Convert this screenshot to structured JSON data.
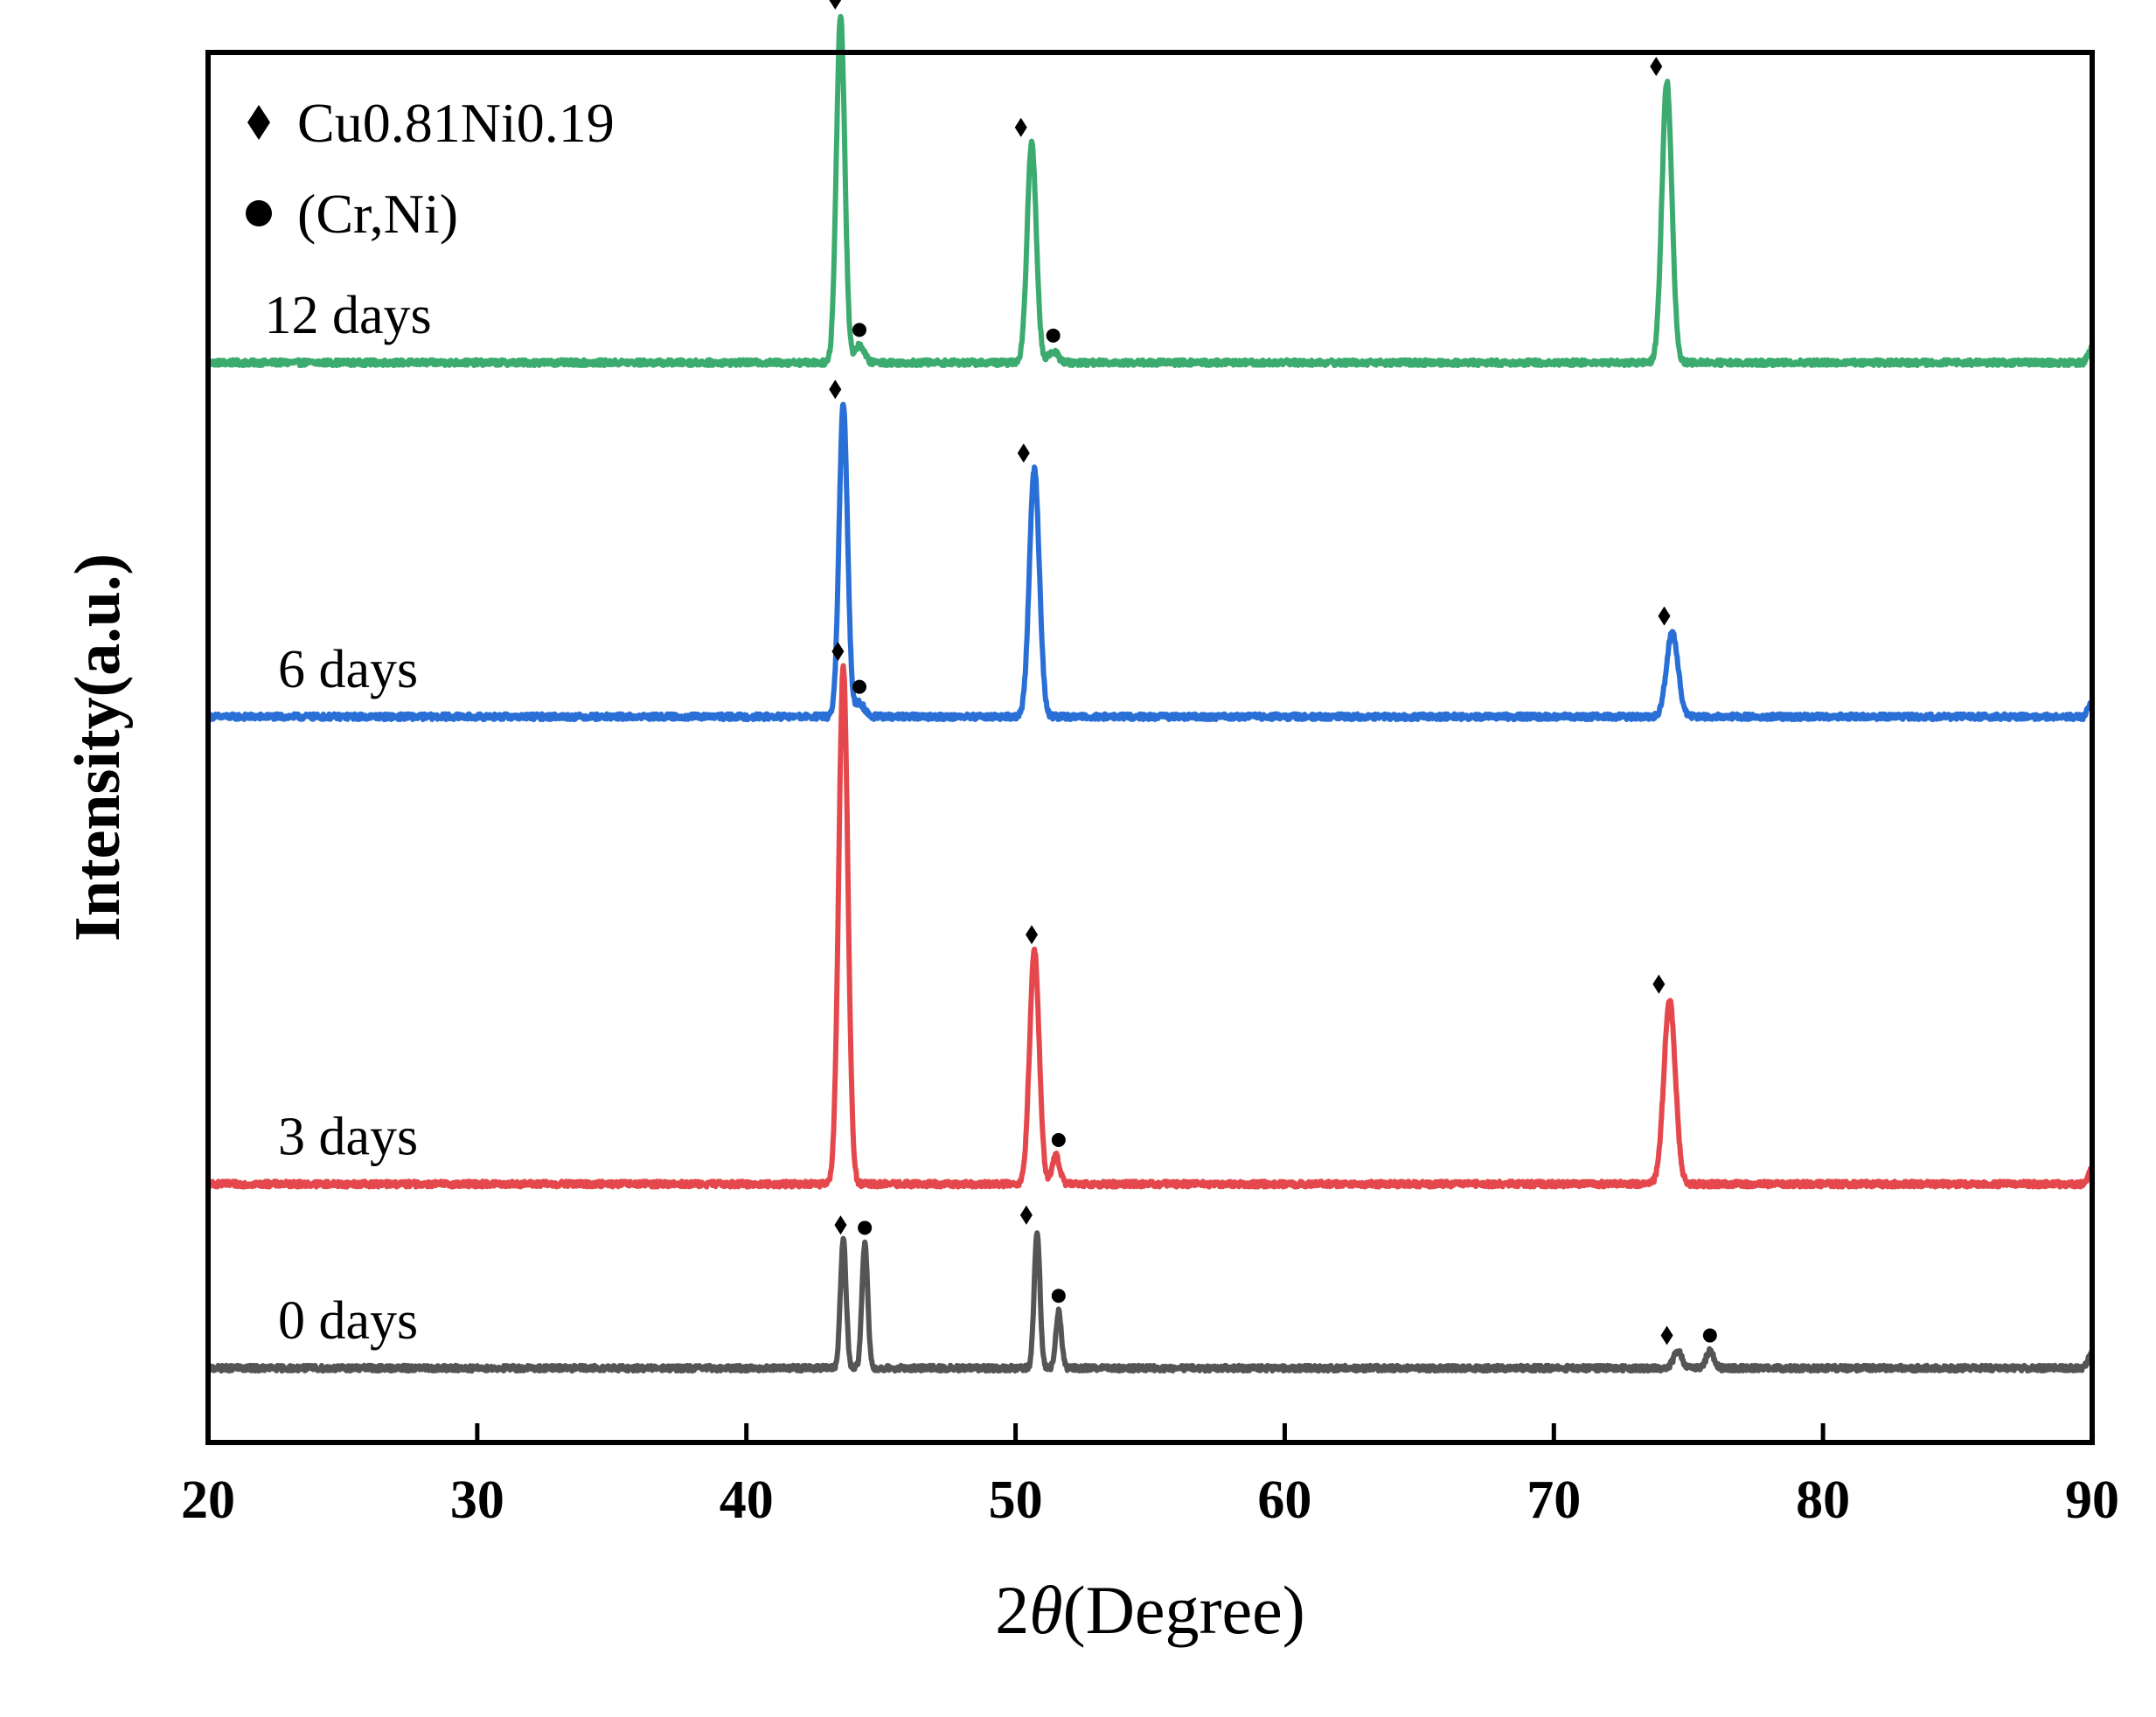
{
  "chart_data": {
    "type": "line",
    "title": "",
    "xlabel": "(Degree)",
    "xlabel_symbol": "2θ",
    "ylabel": "Intensity(a.u.)",
    "xlim": [
      20,
      90
    ],
    "x_ticks": [
      20,
      30,
      40,
      50,
      60,
      70,
      80,
      90
    ],
    "y_ticks_shown": false,
    "legend": {
      "placement": "top-left",
      "entries": [
        {
          "marker": "diamond",
          "label": "Cu0.81Ni0.19"
        },
        {
          "marker": "circle",
          "label": "(Cr,Ni)"
        }
      ]
    },
    "series": [
      {
        "name": "12 days",
        "color": "#3cab6f",
        "offset": 0.71,
        "baseline": 0.0,
        "peaks": [
          {
            "x": 43.5,
            "height": 0.245,
            "width": 0.22
          },
          {
            "x": 44.2,
            "height": 0.012,
            "width": 0.25
          },
          {
            "x": 50.6,
            "height": 0.155,
            "width": 0.24
          },
          {
            "x": 51.4,
            "height": 0.008,
            "width": 0.25
          },
          {
            "x": 74.2,
            "height": 0.198,
            "width": 0.26
          }
        ],
        "markers": [
          {
            "x": 43.3,
            "type": "diamond"
          },
          {
            "x": 44.2,
            "type": "circle"
          },
          {
            "x": 50.2,
            "type": "diamond"
          },
          {
            "x": 51.4,
            "type": "circle"
          },
          {
            "x": 73.8,
            "type": "diamond"
          }
        ]
      },
      {
        "name": "6 days",
        "color": "#2a6fd6",
        "offset": 0.46,
        "baseline": 0.0,
        "peaks": [
          {
            "x": 43.6,
            "height": 0.22,
            "width": 0.22
          },
          {
            "x": 44.2,
            "height": 0.01,
            "width": 0.25
          },
          {
            "x": 50.7,
            "height": 0.175,
            "width": 0.26
          },
          {
            "x": 74.4,
            "height": 0.06,
            "width": 0.3
          }
        ],
        "markers": [
          {
            "x": 43.3,
            "type": "diamond"
          },
          {
            "x": 44.2,
            "type": "circle"
          },
          {
            "x": 50.3,
            "type": "diamond"
          },
          {
            "x": 74.1,
            "type": "diamond"
          }
        ]
      },
      {
        "name": "3 days",
        "color": "#e5484c",
        "offset": 0.13,
        "baseline": 0.0,
        "peaks": [
          {
            "x": 43.6,
            "height": 0.365,
            "width": 0.24
          },
          {
            "x": 50.7,
            "height": 0.165,
            "width": 0.25
          },
          {
            "x": 51.5,
            "height": 0.02,
            "width": 0.2
          },
          {
            "x": 74.3,
            "height": 0.13,
            "width": 0.3
          }
        ],
        "markers": [
          {
            "x": 43.4,
            "type": "diamond"
          },
          {
            "x": 50.6,
            "type": "diamond"
          },
          {
            "x": 51.6,
            "type": "circle"
          },
          {
            "x": 73.9,
            "type": "diamond"
          }
        ]
      },
      {
        "name": "0 days",
        "color": "#555555",
        "offset": 0.0,
        "baseline": 0.0,
        "peaks": [
          {
            "x": 43.6,
            "height": 0.09,
            "width": 0.15
          },
          {
            "x": 44.4,
            "height": 0.088,
            "width": 0.15
          },
          {
            "x": 50.8,
            "height": 0.097,
            "width": 0.15
          },
          {
            "x": 51.6,
            "height": 0.04,
            "width": 0.15
          },
          {
            "x": 74.6,
            "height": 0.012,
            "width": 0.22
          },
          {
            "x": 75.8,
            "height": 0.012,
            "width": 0.2
          }
        ],
        "markers": [
          {
            "x": 43.5,
            "type": "diamond"
          },
          {
            "x": 44.4,
            "type": "circle"
          },
          {
            "x": 50.4,
            "type": "diamond"
          },
          {
            "x": 51.6,
            "type": "circle"
          },
          {
            "x": 74.2,
            "type": "diamond"
          },
          {
            "x": 75.8,
            "type": "circle"
          }
        ]
      }
    ]
  }
}
